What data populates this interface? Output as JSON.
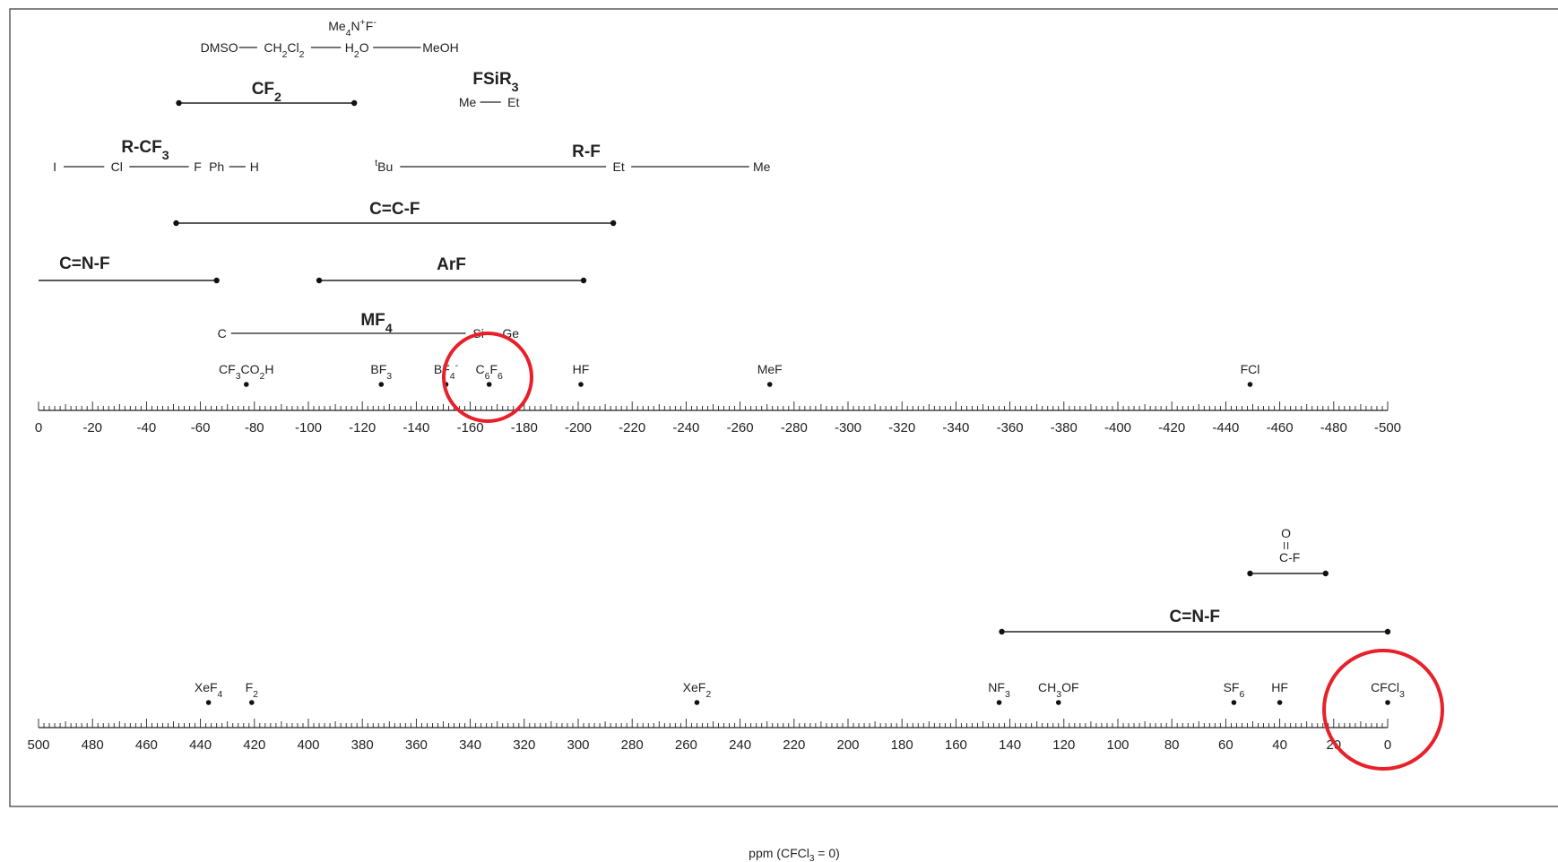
{
  "chart_data": {
    "type": "diagram",
    "axis_title": "ppm (CFCl3 = 0)",
    "top_axis": {
      "ticks": [
        "0",
        "-20",
        "-40",
        "-60",
        "-80",
        "-100",
        "-120",
        "-140",
        "-160",
        "-180",
        "-200",
        "-220",
        "-240",
        "-260",
        "-280",
        "-300",
        "-320",
        "-340",
        "-360",
        "-380",
        "-400",
        "-420",
        "-440",
        "-460",
        "-480",
        "-500"
      ],
      "range": [
        0,
        -500
      ]
    },
    "bottom_axis": {
      "ticks": [
        "500",
        "480",
        "460",
        "440",
        "420",
        "400",
        "380",
        "360",
        "340",
        "320",
        "300",
        "280",
        "260",
        "240",
        "220",
        "200",
        "180",
        "160",
        "140",
        "120",
        "100",
        "80",
        "60",
        "40",
        "20",
        "0"
      ],
      "range": [
        500,
        0
      ]
    },
    "top_ranges": [
      {
        "label": "CF2",
        "from": -52,
        "to": -117
      },
      {
        "label": "C=C-F",
        "from": -51,
        "to": -213
      },
      {
        "label": "C=N-F",
        "from": 0,
        "to": -66
      },
      {
        "label": "ArF",
        "from": -104,
        "to": -202
      }
    ],
    "top_groups": [
      {
        "label": "R-CF3",
        "points": [
          {
            "name": "I",
            "ppm": -6
          },
          {
            "name": "Cl",
            "ppm": -29
          },
          {
            "name": "F",
            "ppm": -59
          },
          {
            "name": "Ph",
            "ppm": -66
          },
          {
            "name": "H",
            "ppm": -80
          }
        ]
      },
      {
        "label": "R-F",
        "points": [
          {
            "name": "tBu",
            "ppm": -128
          },
          {
            "name": "Et",
            "ppm": -215
          },
          {
            "name": "Me",
            "ppm": -268
          }
        ]
      },
      {
        "label": "MF4",
        "points": [
          {
            "name": "C",
            "ppm": -68
          },
          {
            "name": "Si",
            "ppm": -163
          },
          {
            "name": "Ge",
            "ppm": -175
          }
        ]
      },
      {
        "label": "FSiR3",
        "points": [
          {
            "name": "Me",
            "ppm": -159
          },
          {
            "name": "Et",
            "ppm": -176
          }
        ]
      },
      {
        "label": "Me4N+F-",
        "points": [
          {
            "name": "DMSO",
            "ppm": -67
          },
          {
            "name": "CH2Cl2",
            "ppm": -91
          },
          {
            "name": "H2O",
            "ppm": -118
          },
          {
            "name": "MeOH",
            "ppm": -149
          }
        ]
      }
    ],
    "top_points": [
      {
        "label": "CF3CO2H",
        "ppm": -77
      },
      {
        "label": "BF3",
        "ppm": -127
      },
      {
        "label": "BF4-",
        "ppm": -151
      },
      {
        "label": "C6F6",
        "ppm": -167
      },
      {
        "label": "HF",
        "ppm": -201
      },
      {
        "label": "MeF",
        "ppm": -271
      },
      {
        "label": "FCl",
        "ppm": -449
      }
    ],
    "bottom_ranges": [
      {
        "label": "C=N-F",
        "from": 143,
        "to": 0
      },
      {
        "label": "O=C-F",
        "from": 51,
        "to": 23
      }
    ],
    "bottom_points": [
      {
        "label": "XeF4",
        "ppm": 437
      },
      {
        "label": "F2",
        "ppm": 421
      },
      {
        "label": "XeF2",
        "ppm": 256
      },
      {
        "label": "NF3",
        "ppm": 144
      },
      {
        "label": "CH3OF",
        "ppm": 122
      },
      {
        "label": "SF6",
        "ppm": 57
      },
      {
        "label": "HF",
        "ppm": 40
      },
      {
        "label": "CFCl3",
        "ppm": 0
      }
    ],
    "highlight_color": "#e8202a"
  }
}
